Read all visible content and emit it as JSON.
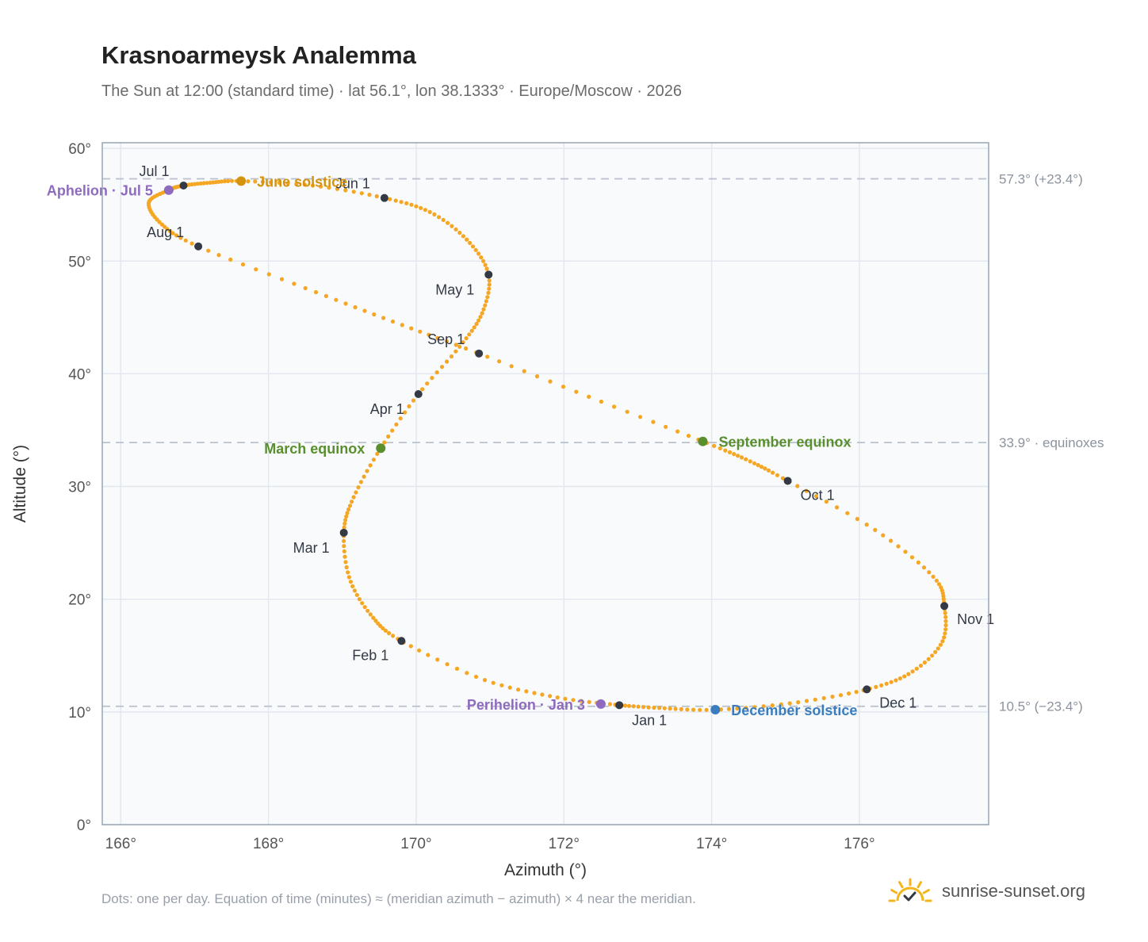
{
  "header": {
    "title": "Krasnoarmeysk Analemma",
    "subtitle": "The Sun at 12:00 (standard time) · lat 56.1°, lon 38.1333° · Europe/Moscow · 2026"
  },
  "footer": {
    "note": "Dots: one per day. Equation of time (minutes) ≈ (meridian azimuth − azimuth) × 4 near the meridian.",
    "brand": "sunrise-sunset.org"
  },
  "colors": {
    "curve": "#f5a623",
    "month_dot": "#333a45",
    "equinox": "#5a8f2e",
    "june_solstice": "#d4930f",
    "december_solstice": "#3a7dbf",
    "apsis": "#8e6bbf",
    "reference_line": "#b8c1cc",
    "plot_bg": "#f8fafc",
    "grid": "#e3e8ee",
    "brand_icon": "#f2b61c"
  },
  "chart_data": {
    "type": "scatter",
    "xlabel": "Azimuth (°)",
    "ylabel": "Altitude (°)",
    "xlim": [
      165.75,
      177.75
    ],
    "ylim": [
      0,
      60.5
    ],
    "x_ticks": [
      166,
      168,
      170,
      172,
      174,
      176
    ],
    "y_ticks": [
      0,
      10,
      20,
      30,
      40,
      50,
      60
    ],
    "x_tick_labels": [
      "166°",
      "168°",
      "170°",
      "172°",
      "174°",
      "176°"
    ],
    "y_tick_labels": [
      "0°",
      "10°",
      "20°",
      "30°",
      "40°",
      "50°",
      "60°"
    ],
    "grid": true,
    "reference_lines": [
      {
        "y": 57.3,
        "label": "57.3° (+23.4°)"
      },
      {
        "y": 33.9,
        "label": "33.9° · equinoxes"
      },
      {
        "y": 10.5,
        "label": "10.5° (−23.4°)"
      }
    ],
    "analemma_path": [
      {
        "label": "Jan 1",
        "x": 172.75,
        "y": 10.6
      },
      {
        "label": "",
        "x": 171.9,
        "y": 11.3
      },
      {
        "label": "",
        "x": 170.9,
        "y": 12.9
      },
      {
        "label": "Feb 1",
        "x": 169.8,
        "y": 16.3
      },
      {
        "label": "",
        "x": 169.4,
        "y": 18.5
      },
      {
        "label": "",
        "x": 169.1,
        "y": 21.8
      },
      {
        "label": "Mar 1",
        "x": 169.02,
        "y": 25.9
      },
      {
        "label": "",
        "x": 169.15,
        "y": 29.0
      },
      {
        "label": "March equinox",
        "x": 169.52,
        "y": 33.4
      },
      {
        "label": "Apr 1",
        "x": 170.03,
        "y": 38.2
      },
      {
        "label": "",
        "x": 170.6,
        "y": 42.5
      },
      {
        "label": "",
        "x": 170.9,
        "y": 45.5
      },
      {
        "label": "May 1",
        "x": 170.98,
        "y": 48.8
      },
      {
        "label": "",
        "x": 170.7,
        "y": 51.8
      },
      {
        "label": "",
        "x": 170.2,
        "y": 54.3
      },
      {
        "label": "Jun 1",
        "x": 169.57,
        "y": 55.6
      },
      {
        "label": "",
        "x": 168.6,
        "y": 56.7
      },
      {
        "label": "June solstice",
        "x": 167.63,
        "y": 57.1
      },
      {
        "label": "",
        "x": 167.2,
        "y": 56.95
      },
      {
        "label": "Jul 1",
        "x": 166.85,
        "y": 56.7
      },
      {
        "label": "Aphelion · Jul 5",
        "x": 166.65,
        "y": 56.3
      },
      {
        "label": "",
        "x": 166.38,
        "y": 55.2
      },
      {
        "label": "",
        "x": 166.55,
        "y": 53.3
      },
      {
        "label": "Aug 1",
        "x": 167.05,
        "y": 51.3
      },
      {
        "label": "",
        "x": 168.5,
        "y": 47.6
      },
      {
        "label": "",
        "x": 169.7,
        "y": 44.6
      },
      {
        "label": "Sep 1",
        "x": 170.85,
        "y": 41.8
      },
      {
        "label": "",
        "x": 172.4,
        "y": 37.8
      },
      {
        "label": "September equinox",
        "x": 173.88,
        "y": 34.0
      },
      {
        "label": "",
        "x": 174.5,
        "y": 32.3
      },
      {
        "label": "Oct 1",
        "x": 175.03,
        "y": 30.5
      },
      {
        "label": "",
        "x": 176.2,
        "y": 26.2
      },
      {
        "label": "",
        "x": 177.0,
        "y": 22.0
      },
      {
        "label": "Nov 1",
        "x": 177.15,
        "y": 19.4
      },
      {
        "label": "",
        "x": 177.12,
        "y": 16.2
      },
      {
        "label": "",
        "x": 176.7,
        "y": 13.5
      },
      {
        "label": "Dec 1",
        "x": 176.1,
        "y": 12.0
      },
      {
        "label": "",
        "x": 175.1,
        "y": 10.8
      },
      {
        "label": "December solstice",
        "x": 174.05,
        "y": 10.2
      },
      {
        "label": "",
        "x": 173.3,
        "y": 10.35
      },
      {
        "label": "Jan 1",
        "x": 172.75,
        "y": 10.6
      }
    ],
    "month_markers": [
      {
        "label": "Jan 1",
        "x": 172.75,
        "y": 10.6,
        "anchor": "below"
      },
      {
        "label": "Feb 1",
        "x": 169.8,
        "y": 16.3,
        "anchor": "below-left"
      },
      {
        "label": "Mar 1",
        "x": 169.02,
        "y": 25.9,
        "anchor": "left"
      },
      {
        "label": "Apr 1",
        "x": 170.03,
        "y": 38.2,
        "anchor": "left"
      },
      {
        "label": "May 1",
        "x": 170.98,
        "y": 48.8,
        "anchor": "left"
      },
      {
        "label": "Jun 1",
        "x": 169.57,
        "y": 55.6,
        "anchor": "above-left"
      },
      {
        "label": "Jul 1",
        "x": 166.85,
        "y": 56.7,
        "anchor": "above-left"
      },
      {
        "label": "Aug 1",
        "x": 167.05,
        "y": 51.3,
        "anchor": "above-left"
      },
      {
        "label": "Sep 1",
        "x": 170.85,
        "y": 41.8,
        "anchor": "above-left"
      },
      {
        "label": "Oct 1",
        "x": 175.03,
        "y": 30.5,
        "anchor": "below-right"
      },
      {
        "label": "Nov 1",
        "x": 177.15,
        "y": 19.4,
        "anchor": "right"
      },
      {
        "label": "Dec 1",
        "x": 176.1,
        "y": 12.0,
        "anchor": "right"
      }
    ],
    "events": [
      {
        "label": "March equinox",
        "x": 169.52,
        "y": 33.4,
        "kind": "equinox",
        "anchor": "left"
      },
      {
        "label": "September equinox",
        "x": 173.88,
        "y": 34.0,
        "kind": "equinox",
        "anchor": "right"
      },
      {
        "label": "June solstice",
        "x": 167.63,
        "y": 57.1,
        "kind": "june_solstice",
        "anchor": "right"
      },
      {
        "label": "December solstice",
        "x": 174.05,
        "y": 10.2,
        "kind": "december_solstice",
        "anchor": "right"
      },
      {
        "label": "Aphelion · Jul 5",
        "x": 166.65,
        "y": 56.3,
        "kind": "apsis",
        "anchor": "left"
      },
      {
        "label": "Perihelion · Jan 3",
        "x": 172.5,
        "y": 10.7,
        "kind": "apsis",
        "anchor": "left"
      }
    ]
  }
}
